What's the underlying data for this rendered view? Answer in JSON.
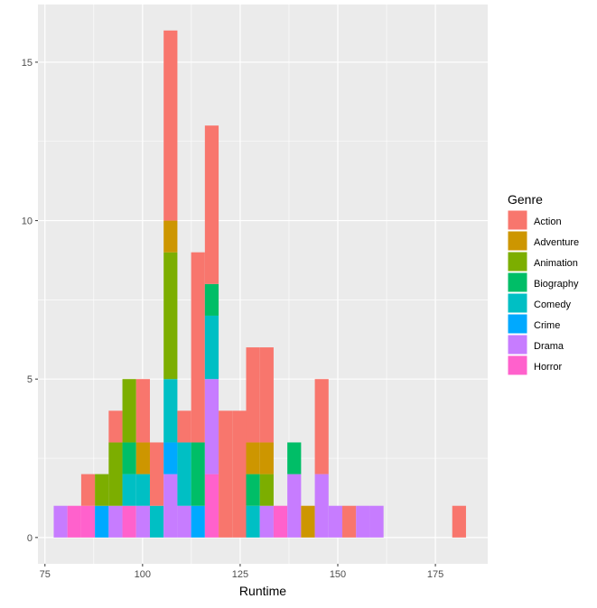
{
  "chart_data": {
    "type": "bar",
    "stacked": true,
    "title": "",
    "xlabel": "Runtime",
    "ylabel": "",
    "xlim": [
      73.2,
      188.4
    ],
    "ylim": [
      -0.83,
      16.82
    ],
    "x_ticks": [
      75,
      100,
      125,
      150,
      175
    ],
    "y_ticks": [
      0,
      5,
      10,
      15
    ],
    "grid": true,
    "legend_title": "Genre",
    "legend_position": "right",
    "bin_centers": [
      79,
      82.52,
      86.04,
      89.56,
      93.08,
      96.6,
      100.12,
      103.64,
      107.16,
      110.68,
      114.2,
      117.72,
      121.24,
      124.76,
      128.28,
      131.8,
      135.32,
      138.84,
      142.36,
      145.88,
      149.4,
      152.92,
      156.44,
      159.96,
      163.48,
      167,
      170.52,
      174.04,
      177.56,
      181.08
    ],
    "bin_width": 3.52,
    "series": [
      {
        "name": "Action",
        "color": "#F8766D",
        "values": [
          0,
          0,
          1,
          0,
          1,
          0,
          2,
          2,
          6,
          1,
          6,
          5,
          4,
          4,
          3,
          3,
          0,
          0,
          0,
          3,
          0,
          1,
          0,
          0,
          0,
          0,
          0,
          0,
          0,
          1
        ]
      },
      {
        "name": "Adventure",
        "color": "#CD9600",
        "values": [
          0,
          0,
          0,
          0,
          0,
          0,
          1,
          0,
          1,
          0,
          0,
          0,
          0,
          0,
          1,
          1,
          0,
          0,
          1,
          0,
          0,
          0,
          0,
          0,
          0,
          0,
          0,
          0,
          0,
          0
        ]
      },
      {
        "name": "Animation",
        "color": "#7CAE00",
        "values": [
          0,
          0,
          0,
          1,
          2,
          2,
          0,
          0,
          4,
          0,
          0,
          0,
          0,
          0,
          0,
          1,
          0,
          0,
          0,
          0,
          0,
          0,
          0,
          0,
          0,
          0,
          0,
          0,
          0,
          0
        ]
      },
      {
        "name": "Biography",
        "color": "#00BE67",
        "values": [
          0,
          0,
          0,
          0,
          0,
          1,
          0,
          0,
          0,
          0,
          2,
          1,
          0,
          0,
          1,
          0,
          0,
          1,
          0,
          0,
          0,
          0,
          0,
          0,
          0,
          0,
          0,
          0,
          0,
          0
        ]
      },
      {
        "name": "Comedy",
        "color": "#00BFC4",
        "values": [
          0,
          0,
          0,
          0,
          0,
          1,
          1,
          1,
          2,
          2,
          0,
          2,
          0,
          0,
          1,
          0,
          0,
          0,
          0,
          0,
          0,
          0,
          0,
          0,
          0,
          0,
          0,
          0,
          0,
          0
        ]
      },
      {
        "name": "Crime",
        "color": "#00A9FF",
        "values": [
          0,
          0,
          0,
          1,
          0,
          0,
          0,
          0,
          1,
          0,
          1,
          0,
          0,
          0,
          0,
          0,
          0,
          0,
          0,
          0,
          0,
          0,
          0,
          0,
          0,
          0,
          0,
          0,
          0,
          0
        ]
      },
      {
        "name": "Drama",
        "color": "#C77CFF",
        "values": [
          1,
          0,
          0,
          0,
          1,
          0,
          1,
          0,
          2,
          1,
          0,
          3,
          0,
          0,
          0,
          1,
          0,
          2,
          0,
          2,
          1,
          0,
          1,
          1,
          0,
          0,
          0,
          0,
          0,
          0
        ]
      },
      {
        "name": "Horror",
        "color": "#FF61CC",
        "values": [
          0,
          1,
          1,
          0,
          0,
          1,
          0,
          0,
          0,
          0,
          0,
          2,
          0,
          0,
          0,
          0,
          1,
          0,
          0,
          0,
          0,
          0,
          0,
          0,
          0,
          0,
          0,
          0,
          0,
          0
        ]
      }
    ],
    "panel_background": "#EBEBEB",
    "grid_color": "#FFFFFF"
  }
}
